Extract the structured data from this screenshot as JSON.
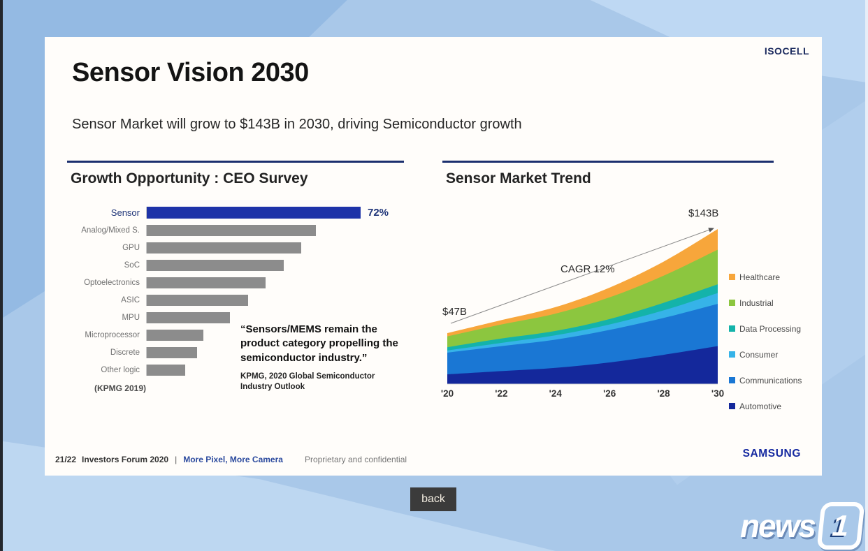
{
  "slide": {
    "brand": "ISOCELL",
    "title": "Sensor Vision 2030",
    "subtitle": "Sensor Market will grow to $143B in 2030, driving Semiconductor growth",
    "footer": {
      "page": "21/22",
      "event": "Investors Forum 2020",
      "separator": "|",
      "tagline": "More Pixel, More Camera",
      "confidential": "Proprietary and confidential",
      "logo": "SAMSUNG"
    }
  },
  "left_panel": {
    "title": "Growth Opportunity : CEO Survey",
    "quote": "“Sensors/MEMS remain the product category propelling the semiconductor industry.”",
    "attribution": "KPMG, 2020 Global Semiconductor Industry Outlook"
  },
  "right_panel": {
    "title": "Sensor Market Trend"
  },
  "back_button": "back",
  "news_logo": {
    "text": "news",
    "badge": "1"
  },
  "colors": {
    "accent_navy": "#1b2f6e",
    "bar_highlight": "#1e33a8",
    "bar_default": "#8c8c8c",
    "samsung_blue": "#1428a0"
  },
  "chart_data": [
    {
      "type": "bar",
      "orientation": "horizontal",
      "title": "Growth Opportunity : CEO Survey",
      "categories": [
        "Sensor",
        "Analog/Mixed S.",
        "GPU",
        "SoC",
        "Optoelectronics",
        "ASIC",
        "MPU",
        "Microprocessor",
        "Discrete",
        "Other logic"
      ],
      "values": [
        72,
        57,
        52,
        46,
        40,
        34,
        28,
        19,
        17,
        13
      ],
      "unit": "%",
      "highlight_index": 0,
      "highlight_label": "72%",
      "xlim": [
        0,
        72
      ],
      "source": "(KPMG 2019)",
      "colors": {
        "highlight": "#1e33a8",
        "default": "#8c8c8c"
      }
    },
    {
      "type": "area",
      "stacked": true,
      "title": "Sensor Market Trend",
      "unit": "$B",
      "x": [
        2020,
        2022,
        2024,
        2026,
        2028,
        2030
      ],
      "x_tick_labels": [
        "'20",
        "'22",
        "'24",
        "'26",
        "'28",
        "'30"
      ],
      "totals": {
        "start_2020": 47,
        "end_2030": 143
      },
      "annotations": {
        "start": "$47B",
        "cagr": "CAGR 12%",
        "end": "$143B"
      },
      "legend_position": "right",
      "series": [
        {
          "name": "Automotive",
          "color": "#14289b",
          "values": [
            9,
            12,
            15,
            20,
            27,
            35
          ]
        },
        {
          "name": "Communications",
          "color": "#1a77d4",
          "values": [
            20,
            23,
            26,
            30,
            34,
            39
          ]
        },
        {
          "name": "Consumer",
          "color": "#36b3e8",
          "values": [
            2,
            3,
            4,
            5,
            7,
            10
          ]
        },
        {
          "name": "Data Processing",
          "color": "#14b3aa",
          "values": [
            3,
            4,
            4,
            5,
            7,
            8
          ]
        },
        {
          "name": "Industrial",
          "color": "#8cc63f",
          "values": [
            10,
            13,
            16,
            20,
            25,
            32
          ]
        },
        {
          "name": "Healthcare",
          "color": "#f7a63b",
          "values": [
            3,
            4,
            6,
            9,
            13,
            19
          ]
        }
      ]
    }
  ]
}
